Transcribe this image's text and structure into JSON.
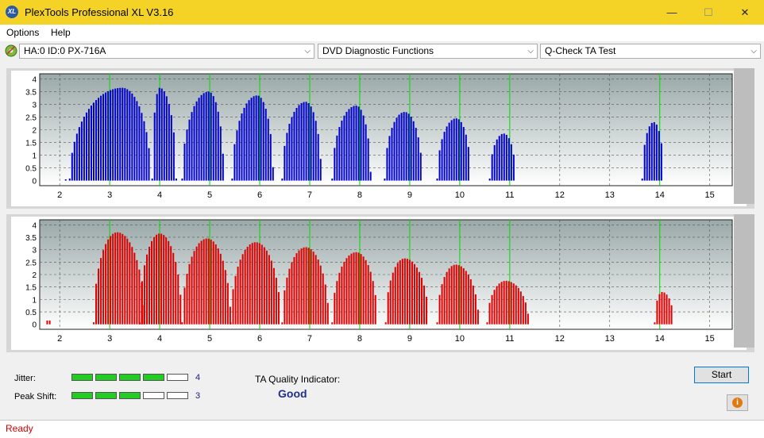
{
  "window": {
    "title": "PlexTools Professional XL V3.16",
    "icon_text": "XL",
    "minimize": "—",
    "maximize": "☐",
    "close": "✕"
  },
  "menu": {
    "options": "Options",
    "help": "Help"
  },
  "toolbar": {
    "drive": "HA:0 ID:0  PX-716A",
    "function": "DVD Diagnostic Functions",
    "test": "Q-Check TA Test",
    "arrow": "⌵"
  },
  "colors": {
    "top_series": "#0000cc",
    "bottom_series": "#dd0000",
    "marker": "#00dd00",
    "title_bar": "#f5d326"
  },
  "chart_data": [
    {
      "type": "bar",
      "series": [
        {
          "color": "#0000cc",
          "peaks": [
            {
              "center": 3.25,
              "start": 2.2,
              "end": 3.82,
              "height": 3.65,
              "lead": [
                [
                  2.12,
                  0.05
                ]
              ]
            },
            {
              "center": 4.0,
              "start": 3.85,
              "end": 4.33,
              "height": 3.65
            },
            {
              "center": 4.98,
              "start": 4.45,
              "end": 5.28,
              "height": 3.5
            },
            {
              "center": 5.95,
              "start": 5.45,
              "end": 6.27,
              "height": 3.35
            },
            {
              "center": 6.92,
              "start": 6.45,
              "end": 7.23,
              "height": 3.1
            },
            {
              "center": 7.93,
              "start": 7.45,
              "end": 8.22,
              "height": 2.95
            },
            {
              "center": 8.9,
              "start": 8.5,
              "end": 9.25,
              "height": 2.7
            },
            {
              "center": 9.93,
              "start": 9.55,
              "end": 10.22,
              "height": 2.45
            },
            {
              "center": 10.88,
              "start": 10.6,
              "end": 11.12,
              "height": 1.85
            },
            {
              "center": 13.88,
              "start": 13.65,
              "end": 14.08,
              "height": 2.3
            }
          ]
        }
      ],
      "x_ticks": [
        2,
        3,
        4,
        5,
        6,
        7,
        8,
        9,
        10,
        11,
        12,
        13,
        14,
        15
      ],
      "y_ticks": [
        0,
        0.5,
        1,
        1.5,
        2,
        2.5,
        3,
        3.5,
        4
      ],
      "y_labels": [
        "0",
        "0.5",
        "1",
        "1.5",
        "2",
        "2.5",
        "3",
        "3.5",
        "4"
      ],
      "xlim": [
        1.6,
        15.45
      ],
      "ylim": [
        -0.2,
        4.2
      ],
      "markers": [
        3,
        4,
        5,
        6,
        7,
        8,
        9,
        10,
        11,
        14
      ]
    },
    {
      "type": "bar",
      "series": [
        {
          "color": "#dd0000",
          "peaks": [
            {
              "center": 3.15,
              "start": 2.68,
              "end": 3.7,
              "height": 3.7,
              "lead": [
                [
                  1.75,
                  0.15
                ],
                [
                  1.8,
                  0.15
                ]
              ]
            },
            {
              "center": 4.0,
              "start": 3.6,
              "end": 4.44,
              "height": 3.65
            },
            {
              "center": 4.95,
              "start": 4.45,
              "end": 5.42,
              "height": 3.45
            },
            {
              "center": 5.92,
              "start": 5.42,
              "end": 6.42,
              "height": 3.3
            },
            {
              "center": 6.92,
              "start": 6.45,
              "end": 7.38,
              "height": 3.1
            },
            {
              "center": 7.93,
              "start": 7.45,
              "end": 8.35,
              "height": 2.9
            },
            {
              "center": 8.9,
              "start": 8.52,
              "end": 9.38,
              "height": 2.65
            },
            {
              "center": 9.92,
              "start": 9.55,
              "end": 10.38,
              "height": 2.4
            },
            {
              "center": 10.92,
              "start": 10.55,
              "end": 11.38,
              "height": 1.75
            },
            {
              "center": 14.05,
              "start": 13.9,
              "end": 14.28,
              "height": 1.3
            }
          ]
        }
      ],
      "x_ticks": [
        2,
        3,
        4,
        5,
        6,
        7,
        8,
        9,
        10,
        11,
        12,
        13,
        14,
        15
      ],
      "y_ticks": [
        0,
        0.5,
        1,
        1.5,
        2,
        2.5,
        3,
        3.5,
        4
      ],
      "y_labels": [
        "0",
        "0.5",
        "1",
        "1.5",
        "2",
        "2.5",
        "3",
        "3.5",
        "4"
      ],
      "xlim": [
        1.6,
        15.45
      ],
      "ylim": [
        -0.2,
        4.2
      ],
      "markers": [
        3,
        4,
        5,
        6,
        7,
        8,
        9,
        10,
        11,
        14
      ]
    }
  ],
  "results": {
    "jitter_label": "Jitter:",
    "jitter_value": "4",
    "jitter_level": 4,
    "peak_label": "Peak Shift:",
    "peak_value": "3",
    "peak_level": 3,
    "segments_total": 5,
    "ta_label": "TA Quality Indicator:",
    "ta_value": "Good"
  },
  "buttons": {
    "start": "Start",
    "info_icon": "i"
  },
  "status": {
    "text": "Ready"
  }
}
